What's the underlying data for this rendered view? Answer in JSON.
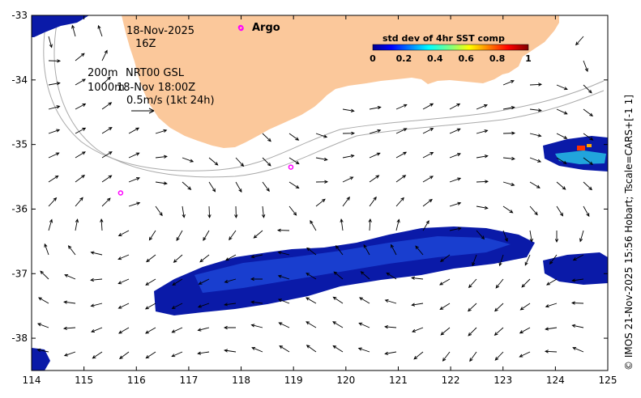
{
  "map": {
    "lon_range": [
      114,
      125
    ],
    "lat_range": [
      -38.5,
      -33
    ],
    "x_ticks": [
      "114",
      "115",
      "116",
      "117",
      "118",
      "119",
      "120",
      "121",
      "122",
      "123",
      "124",
      "125"
    ],
    "y_ticks": [
      "-33",
      "-34",
      "-35",
      "-36",
      "-37",
      "-38"
    ],
    "land_color": "#fbc89b",
    "ocean_color": "#ffffff"
  },
  "annotations": {
    "date": "18-Nov-2025",
    "hour": "16Z",
    "depth_200": "200m",
    "depth_1000": "1000m",
    "product": "NRT00 GSL",
    "product_time": "18-Nov 18:00Z",
    "scale": "0.5m/s (1kt 24h)"
  },
  "legend": {
    "argo_label": "Argo",
    "argo_color": "#ff00ff",
    "colorbar_title": "std dev of 4hr SST comp",
    "colorbar_ticks": [
      "0",
      "0.2",
      "0.4",
      "0.6",
      "0.8",
      "1"
    ],
    "colorbar_range": [
      0,
      1
    ]
  },
  "argo_floats": [
    {
      "lon": 118.0,
      "lat": -33.2
    },
    {
      "lon": 118.95,
      "lat": -35.35
    },
    {
      "lon": 115.7,
      "lat": -35.75
    }
  ],
  "credit": "© IMOS 21-Nov-2025 15:56 Hobart; Tscale=CARS+[-1 1]"
}
